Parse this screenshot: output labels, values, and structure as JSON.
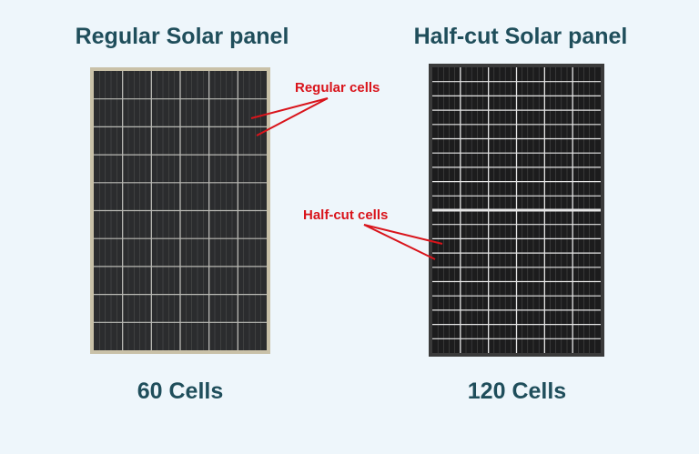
{
  "left": {
    "title": "Regular Solar panel",
    "count": "60 Cells",
    "columns": 6,
    "rows": 10
  },
  "right": {
    "title": "Half-cut Solar panel",
    "count": "120 Cells",
    "columns": 6,
    "rows": 20
  },
  "annotations": {
    "regular": "Regular cells",
    "halfcut": "Half-cut cells"
  },
  "colors": {
    "title": "#1f4e5b",
    "annotation": "#d9141b",
    "background": "#eef6fb"
  }
}
